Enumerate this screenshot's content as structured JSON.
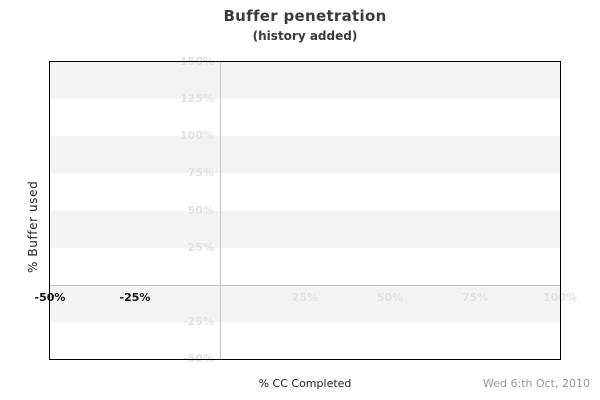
{
  "header": {
    "title": "Buffer penetration",
    "subtitle": "(history added)"
  },
  "footer": {
    "xlabel": "% CC Completed",
    "date": "Wed 6:th Oct, 2010"
  },
  "chart_data": {
    "type": "scatter",
    "title": "Buffer penetration",
    "subtitle": "(history added)",
    "xlabel": "% CC Completed",
    "ylabel": "% Buffer used",
    "date_stamp": "Wed 6:th Oct, 2010",
    "xlim": [
      -50,
      100
    ],
    "ylim": [
      -50,
      150
    ],
    "band_step": 25,
    "grid": {
      "zero_lines": true,
      "bands": "horizontal-alternating"
    },
    "legend": "none",
    "series": [],
    "x_ticks": [
      {
        "value": -50,
        "label": "-50%",
        "emphasis": "dark"
      },
      {
        "value": -25,
        "label": "-25%",
        "emphasis": "dark"
      },
      {
        "value": 25,
        "label": "25%",
        "emphasis": "faint"
      },
      {
        "value": 50,
        "label": "50%",
        "emphasis": "faint"
      },
      {
        "value": 75,
        "label": "75%",
        "emphasis": "faint"
      },
      {
        "value": 100,
        "label": "100%",
        "emphasis": "faint"
      }
    ],
    "y_ticks": [
      {
        "value": 150,
        "label": "150%"
      },
      {
        "value": 125,
        "label": "125%"
      },
      {
        "value": 100,
        "label": "100%"
      },
      {
        "value": 75,
        "label": "75%"
      },
      {
        "value": 50,
        "label": "50%"
      },
      {
        "value": 25,
        "label": "25%"
      },
      {
        "value": -25,
        "label": "-25%"
      },
      {
        "value": -50,
        "label": "-50%"
      }
    ],
    "colors": {
      "band": "#f3f3f3",
      "zero_line": "#c4c4c4",
      "border": "#000000",
      "faint_label": "#e2e2e2",
      "dark_label": "#111111",
      "title": "#3b3b3b",
      "axis_title": "#222222",
      "date": "#999999"
    }
  }
}
